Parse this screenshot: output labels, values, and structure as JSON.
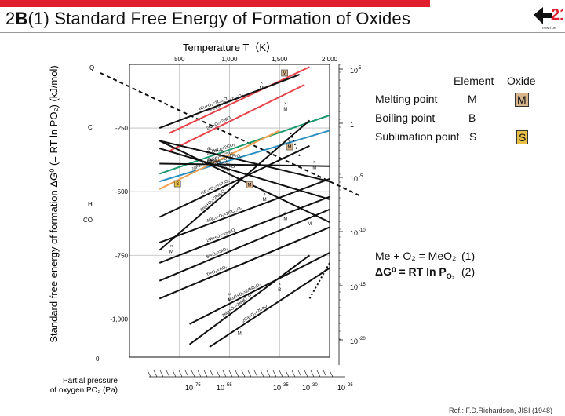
{
  "header": {
    "title_num": "2",
    "title_letter": "B",
    "title_sub": "(1)",
    "title_text": "Standard Free Energy of Formation of Oxides",
    "logo_text": "TRINITON"
  },
  "colors": {
    "accent_red": "#e01e2d",
    "red_line": "#e8424a",
    "green_line": "#1a9a6c",
    "blue_line": "#2a8fc0",
    "orange_line": "#f0a050",
    "marker_fill": "#d8b48c"
  },
  "legend": {
    "col_element": "Element",
    "col_oxide": "Oxide",
    "rows": [
      {
        "label": "Melting point",
        "element": "M",
        "oxide": "M"
      },
      {
        "label": "Boiling point",
        "element": "B",
        "oxide": ""
      },
      {
        "label": "Sublimation point",
        "element": "S",
        "oxide": "S"
      }
    ]
  },
  "formulas": {
    "eq1": "Me + O₂ = MeO₂",
    "eq1_num": "(1)",
    "eq2": "ΔG⁰ = RT ln P",
    "eq2_sub": "O₂",
    "eq2_num": "(2)"
  },
  "reference": "Ref.: F.D.Richardson, JISI (1948)",
  "chart_data": {
    "type": "line",
    "title": "Temperature T（K）",
    "xlabel": "Temperature T（K）",
    "ylabel": "Standard free energy of formation ΔG⁰ (= RT ln PO₂) (kJ/mol)",
    "xlim": [
      0,
      2000
    ],
    "ylim": [
      -1150,
      0
    ],
    "x_ticks": [
      "500",
      "1,000",
      "1,500",
      "2,000"
    ],
    "x_tick_values": [
      500,
      1000,
      1500,
      2000
    ],
    "y_ticks": [
      "-250",
      "-500",
      "-750",
      "-1,000",
      "0"
    ],
    "y_tick_values": [
      -250,
      -500,
      -750,
      -1000,
      0
    ],
    "left_scale_labels": [
      "Q",
      "C",
      "H",
      "CO"
    ],
    "right_scale_labels": [
      "10",
      "1",
      "10",
      "10",
      "10",
      "10",
      "10"
    ],
    "right_scale_exponents": [
      "5",
      "",
      "-5",
      "-10",
      "-15",
      "-20",
      ""
    ],
    "bottom_axis_label": "Partial pressure",
    "bottom_axis_label2": "of oxygen  P",
    "bottom_axis_label2_sub": "O₂",
    "bottom_axis_unit": "(Pa)",
    "bottom_scale_labels": [
      "10",
      "10",
      "10",
      "10",
      "10"
    ],
    "bottom_scale_exponents": [
      "-75",
      "-55",
      "-35",
      "-30",
      "-25"
    ],
    "grid": true,
    "series": [
      {
        "name": "4Fe₃O₄+O₂=6Fe₂O₃",
        "color": "red",
        "x": [
          400,
          1800
        ],
        "y": [
          -270,
          -10
        ]
      },
      {
        "name": "2Ni+O₂=2NiO",
        "color": "red",
        "x": [
          400,
          1750
        ],
        "y": [
          -340,
          -80
        ]
      },
      {
        "name": "4Cu+O₂=2Cu₂O",
        "color": "black",
        "x": [
          300,
          1700
        ],
        "y": [
          -250,
          -40
        ]
      },
      {
        "name": "2CO+O₂=2CO₂",
        "color": "green",
        "x": [
          300,
          2000
        ],
        "y": [
          -430,
          -200
        ]
      },
      {
        "name": "2H₂+O₂=2H₂O",
        "color": "blue",
        "x": [
          300,
          2000
        ],
        "y": [
          -460,
          -260
        ]
      },
      {
        "name": "⅔Fe+O₂=⅓Fe₃O₄",
        "color": "orange",
        "x": [
          300,
          1500
        ],
        "y": [
          -490,
          -260
        ]
      },
      {
        "name": "6FeO+O₂=2Fe₃O₄",
        "color": "black",
        "x": [
          300,
          2000
        ],
        "y": [
          -300,
          -460
        ]
      },
      {
        "name": "2Fe+O₂=2FeO",
        "color": "black",
        "x": [
          300,
          2000
        ],
        "y": [
          -330,
          -530
        ]
      },
      {
        "name": "2C+O₂=2CO",
        "color": "black",
        "x": [
          300,
          2000
        ],
        "y": [
          -300,
          -620
        ]
      },
      {
        "name": "C+O₂=CO₂",
        "color": "black",
        "x": [
          300,
          2000
        ],
        "y": [
          -390,
          -400
        ]
      },
      {
        "name": "⅔P₂+O₂=⅓P₂O₅",
        "color": "black",
        "x": [
          300,
          1800
        ],
        "y": [
          -600,
          -320
        ]
      },
      {
        "name": "4Na+O₂=2Na₂O",
        "color": "black",
        "x": [
          300,
          1800
        ],
        "y": [
          -730,
          -220
        ]
      },
      {
        "name": "4/3Cr+O₂=2/3Cr₂O₃",
        "color": "black",
        "x": [
          300,
          2000
        ],
        "y": [
          -700,
          -450
        ]
      },
      {
        "name": "2Mn+O₂=2MnO",
        "color": "black",
        "x": [
          300,
          2000
        ],
        "y": [
          -780,
          -520
        ]
      },
      {
        "name": "Si+O₂=SiO₂",
        "color": "black",
        "x": [
          300,
          2000
        ],
        "y": [
          -850,
          -570
        ]
      },
      {
        "name": "Ti+O₂=TiO₂",
        "color": "black",
        "x": [
          300,
          2000
        ],
        "y": [
          -920,
          -640
        ]
      },
      {
        "name": "4/3Al+O₂=2/3Al₂O₃",
        "color": "black",
        "x": [
          600,
          2000
        ],
        "y": [
          -1020,
          -740
        ]
      },
      {
        "name": "2Mg+O₂=2MgO",
        "color": "black",
        "x": [
          600,
          1800
        ],
        "y": [
          -1100,
          -750
        ]
      },
      {
        "name": "2Ca+O₂=2CaO",
        "color": "black",
        "x": [
          800,
          2000
        ],
        "y": [
          -1110,
          -800
        ]
      }
    ]
  }
}
